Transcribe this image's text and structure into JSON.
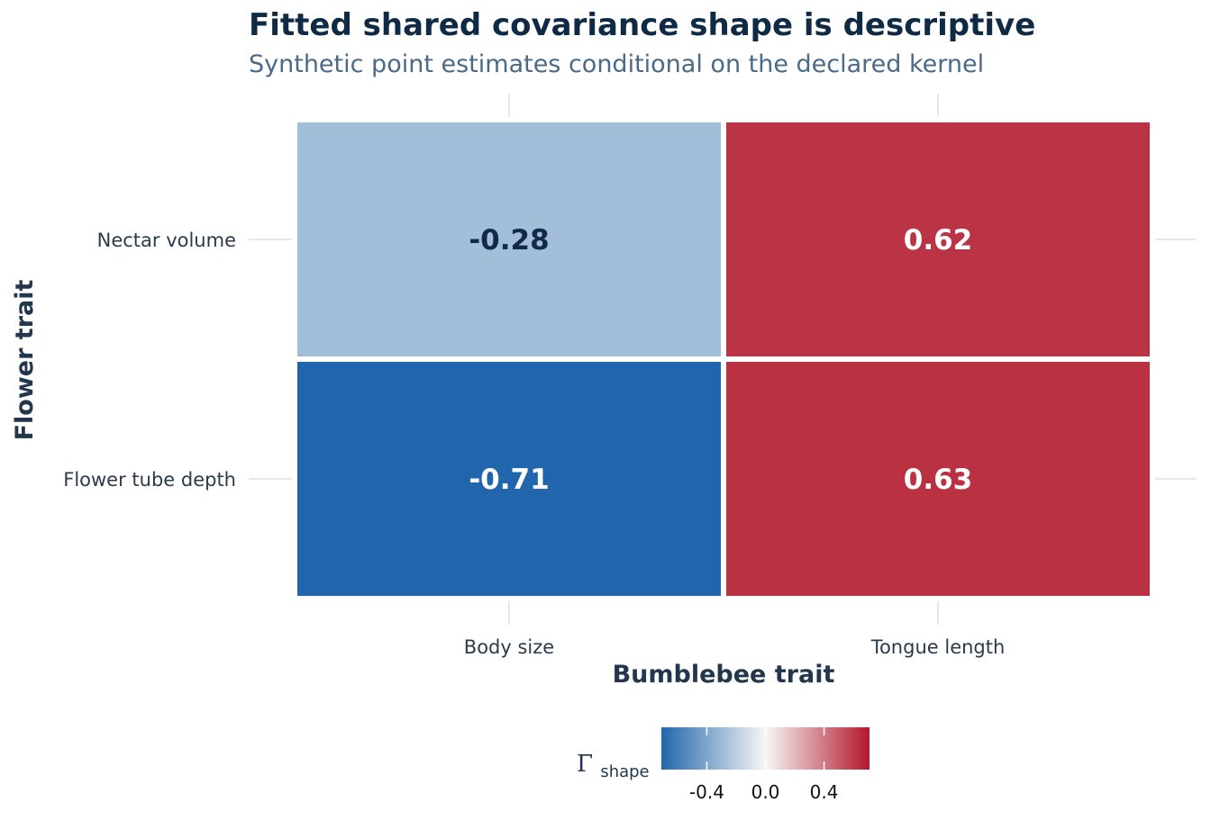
{
  "chart_data": {
    "type": "heatmap",
    "title": "Fitted shared covariance shape is descriptive",
    "subtitle": "Synthetic point estimates conditional on the declared kernel",
    "xlabel": "Bumblebee trait",
    "ylabel": "Flower trait",
    "x_categories": [
      "Body size",
      "Tongue length"
    ],
    "y_categories": [
      "Nectar volume",
      "Flower tube depth"
    ],
    "cells": [
      {
        "x": "Body size",
        "y": "Nectar volume",
        "value": -0.28,
        "label": "-0.28"
      },
      {
        "x": "Tongue length",
        "y": "Nectar volume",
        "value": 0.62,
        "label": "0.62"
      },
      {
        "x": "Body size",
        "y": "Flower tube depth",
        "value": -0.71,
        "label": "-0.71"
      },
      {
        "x": "Tongue length",
        "y": "Flower tube depth",
        "value": 0.63,
        "label": "0.63"
      }
    ],
    "legend": {
      "title": "Γ",
      "title_subscript": "shape",
      "placement": "bottom",
      "range": [
        -0.71,
        0.71
      ],
      "ticks": [
        -0.4,
        0.0,
        0.4
      ],
      "tick_labels": [
        "-0.4",
        "0.0",
        "0.4"
      ],
      "colors": {
        "low": "#2166ac",
        "mid": "#f7f7f7",
        "high": "#b2182b"
      }
    },
    "grid": true
  }
}
